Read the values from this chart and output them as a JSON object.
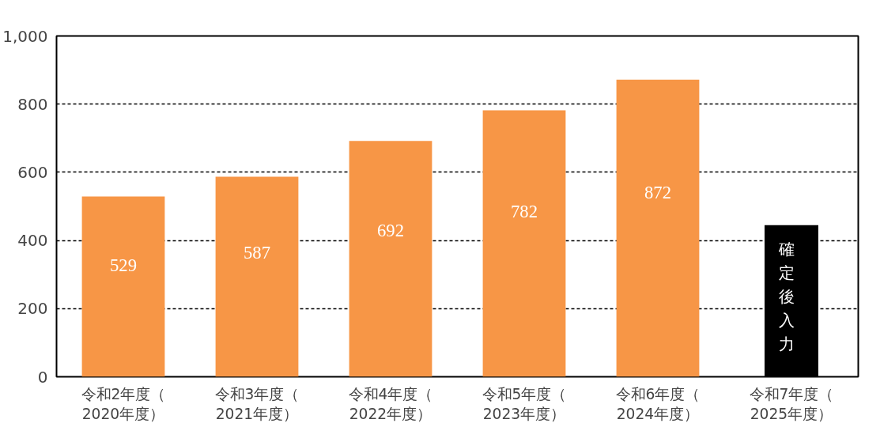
{
  "chart_data": {
    "type": "bar",
    "categories": [
      "令和2年度（2020年度）",
      "令和3年度（2021年度）",
      "令和4年度（2022年度）",
      "令和5年度（2023年度）",
      "令和6年度（2024年度）",
      "令和7年度（2025年度）"
    ],
    "values": [
      529,
      587,
      692,
      782,
      872,
      null
    ],
    "color": "#f79646",
    "data_labels": true,
    "ylim": [
      0,
      1000
    ],
    "yticks": [
      0,
      200,
      400,
      600,
      800,
      {
        "value": 1000,
        "label": "1,000"
      }
    ],
    "grid": "y",
    "annotations": [
      "確定後入力"
    ]
  }
}
